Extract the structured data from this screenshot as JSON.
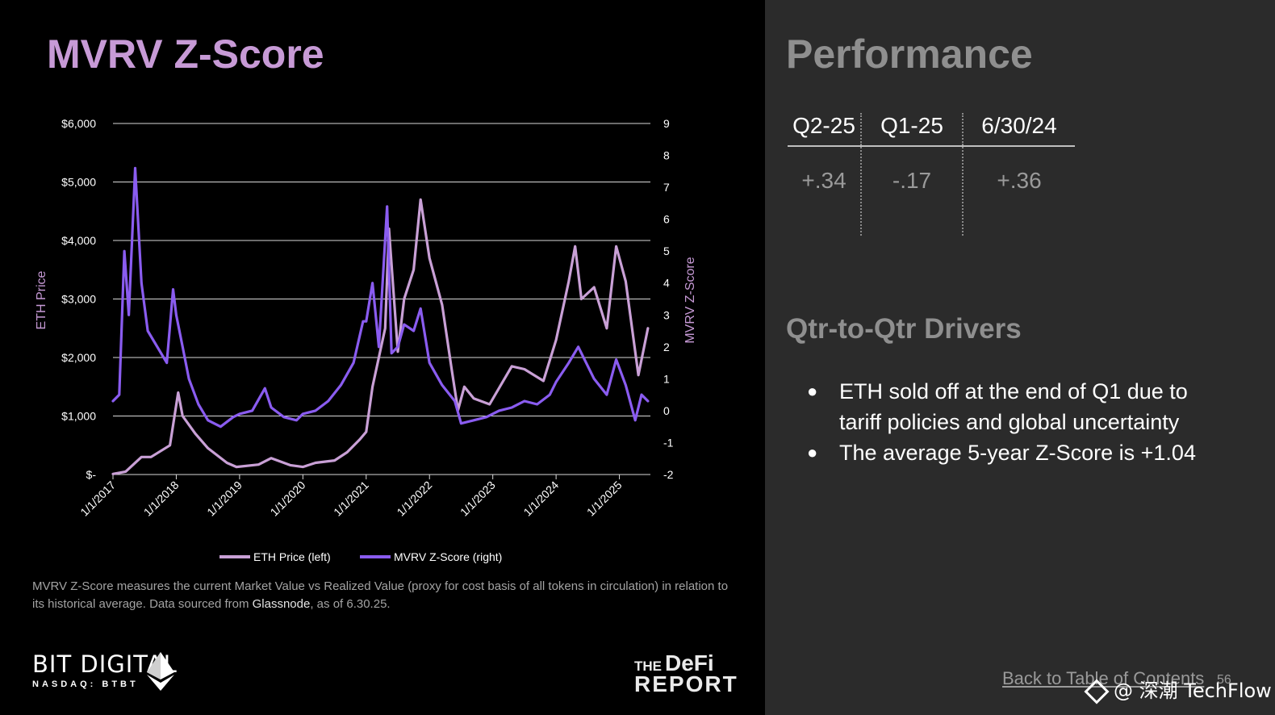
{
  "left_title": "MVRV Z-Score",
  "chart_data": {
    "type": "line",
    "ylabel_left": "ETH Price",
    "ylabel_right": "MVRV Z-Score",
    "y_left_ticks": [
      "$6,000",
      "$5,000",
      "$4,000",
      "$3,000",
      "$2,000",
      "$1,000",
      "$-"
    ],
    "y_right_ticks": [
      "9",
      "8",
      "7",
      "6",
      "5",
      "4",
      "3",
      "2",
      "1",
      "0",
      "-1",
      "-2"
    ],
    "x_ticks": [
      "1/1/2017",
      "1/1/2018",
      "1/1/2019",
      "1/1/2020",
      "1/1/2021",
      "1/1/2022",
      "1/1/2023",
      "1/1/2024",
      "1/1/2025"
    ],
    "ylim_left": [
      0,
      6000
    ],
    "ylim_right": [
      -2,
      9
    ],
    "grid": true,
    "legend_position": "bottom",
    "series": [
      {
        "name": "ETH Price (left)",
        "axis": "left",
        "color": "#c9a0d6",
        "x": [
          2017.0,
          2017.2,
          2017.45,
          2017.6,
          2017.9,
          2018.03,
          2018.1,
          2018.3,
          2018.5,
          2018.8,
          2018.95,
          2019.3,
          2019.5,
          2019.8,
          2020.0,
          2020.2,
          2020.5,
          2020.7,
          2020.9,
          2021.0,
          2021.1,
          2021.3,
          2021.36,
          2021.5,
          2021.6,
          2021.75,
          2021.86,
          2022.0,
          2022.2,
          2022.35,
          2022.45,
          2022.55,
          2022.7,
          2022.95,
          2023.3,
          2023.5,
          2023.8,
          2024.0,
          2024.2,
          2024.3,
          2024.4,
          2024.6,
          2024.8,
          2024.95,
          2025.1,
          2025.3,
          2025.45
        ],
        "y": [
          10,
          50,
          300,
          300,
          500,
          1400,
          1000,
          700,
          450,
          200,
          130,
          170,
          280,
          160,
          130,
          200,
          240,
          380,
          600,
          730,
          1500,
          2500,
          4200,
          2100,
          3000,
          3500,
          4700,
          3700,
          2900,
          1800,
          1100,
          1500,
          1300,
          1200,
          1850,
          1800,
          1600,
          2300,
          3300,
          3900,
          3000,
          3200,
          2500,
          3900,
          3300,
          1700,
          2500
        ]
      },
      {
        "name": "MVRV Z-Score (right)",
        "axis": "right",
        "color": "#8a5cf0",
        "x": [
          2017.0,
          2017.1,
          2017.18,
          2017.25,
          2017.35,
          2017.45,
          2017.55,
          2017.7,
          2017.85,
          2017.95,
          2018.0,
          2018.1,
          2018.2,
          2018.35,
          2018.5,
          2018.7,
          2018.9,
          2019.0,
          2019.2,
          2019.4,
          2019.5,
          2019.7,
          2019.9,
          2020.0,
          2020.2,
          2020.4,
          2020.6,
          2020.8,
          2020.95,
          2021.0,
          2021.1,
          2021.2,
          2021.33,
          2021.4,
          2021.5,
          2021.6,
          2021.75,
          2021.86,
          2022.0,
          2022.2,
          2022.4,
          2022.5,
          2022.7,
          2022.9,
          2023.1,
          2023.3,
          2023.5,
          2023.7,
          2023.9,
          2024.0,
          2024.2,
          2024.35,
          2024.6,
          2024.8,
          2024.95,
          2025.1,
          2025.25,
          2025.35,
          2025.45
        ],
        "y": [
          0.3,
          0.5,
          5.0,
          3.0,
          7.6,
          4.0,
          2.5,
          2.0,
          1.5,
          3.8,
          3.0,
          2.0,
          1.0,
          0.2,
          -0.3,
          -0.5,
          -0.2,
          -0.1,
          0.0,
          0.7,
          0.1,
          -0.2,
          -0.3,
          -0.1,
          0.0,
          0.3,
          0.8,
          1.5,
          2.8,
          2.8,
          4.0,
          2.0,
          6.4,
          1.8,
          2.0,
          2.7,
          2.5,
          3.2,
          1.5,
          0.8,
          0.3,
          -0.4,
          -0.3,
          -0.2,
          0.0,
          0.1,
          0.3,
          0.2,
          0.5,
          0.9,
          1.5,
          2.0,
          1.0,
          0.5,
          1.6,
          0.8,
          -0.3,
          0.5,
          0.3
        ]
      }
    ]
  },
  "footnote": {
    "text": "MVRV Z-Score  measures the current Market Value vs Realized Value (proxy for cost basis of all tokens in circulation) in relation to its historical average. Data sourced from ",
    "source": "Glassnode",
    "suffix": ", as of 6.30.25."
  },
  "brand_left": {
    "name": "BIT DIGITAL",
    "ticker": "NASDAQ: BTBT"
  },
  "brand_right": {
    "the": "THE",
    "defi": "DeFi",
    "report": "REPORT"
  },
  "performance": {
    "title": "Performance",
    "columns": [
      "Q2-25",
      "Q1-25",
      "6/30/24"
    ],
    "values": [
      "+.34",
      "-.17",
      "+.36"
    ]
  },
  "drivers": {
    "title": "Qtr-to-Qtr Drivers",
    "items": [
      "ETH sold off at the end of Q1 due to tariff policies and global uncertainty",
      "The average 5-year Z-Score is +1.04"
    ]
  },
  "footer": {
    "back_link": "Back to Table of Contents",
    "page": "56",
    "watermark": "@ 深潮 TechFlow"
  }
}
